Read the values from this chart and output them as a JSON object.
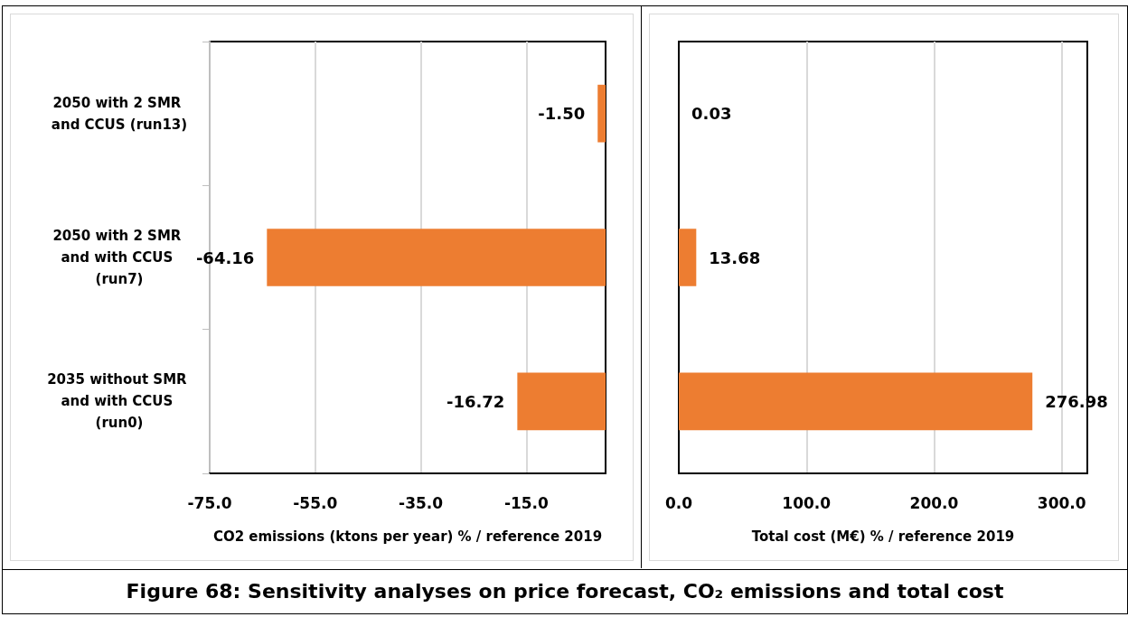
{
  "chart_data": [
    {
      "type": "bar",
      "orientation": "horizontal",
      "categories": [
        "2050 with 2 SMR and CCUS (run13)",
        "2050 with 2 SMR and with CCUS (run7)",
        "2035 without SMR and with CCUS (run0)"
      ],
      "values": [
        -1.5,
        -64.16,
        -16.72
      ],
      "value_labels": [
        "-1.50",
        "-64.16",
        "-16.72"
      ],
      "color": "#ed7d31",
      "xlabel": "CO2 emissions (ktons per year) % / reference 2019",
      "xlim": [
        -75,
        0
      ],
      "xticks": [
        {
          "value": -75,
          "label": "-75.0"
        },
        {
          "value": -55,
          "label": "-55.0"
        },
        {
          "value": -35,
          "label": "-35.0"
        },
        {
          "value": -15,
          "label": "-15.0"
        }
      ],
      "grid": "x",
      "annotations": [
        "Figure 68: Sensitivity analyses on price forecast, CO₂ emissions and total cost"
      ]
    },
    {
      "type": "bar",
      "orientation": "horizontal",
      "categories": [
        "2050 with 2 SMR and CCUS (run13)",
        "2050 with 2 SMR and with CCUS (run7)",
        "2035 without SMR and with CCUS (run0)"
      ],
      "values": [
        0.03,
        13.68,
        276.98
      ],
      "value_labels": [
        "0.03",
        "13.68",
        "276.98"
      ],
      "color": "#ed7d31",
      "xlabel": "Total cost (M€) % / reference 2019",
      "xlim": [
        0,
        320
      ],
      "xticks": [
        {
          "value": 0,
          "label": "0.0"
        },
        {
          "value": 100,
          "label": "100.0"
        },
        {
          "value": 200,
          "label": "200.0"
        },
        {
          "value": 300,
          "label": "300.0"
        }
      ],
      "grid": "x",
      "tick_labels": "x"
    }
  ]
}
